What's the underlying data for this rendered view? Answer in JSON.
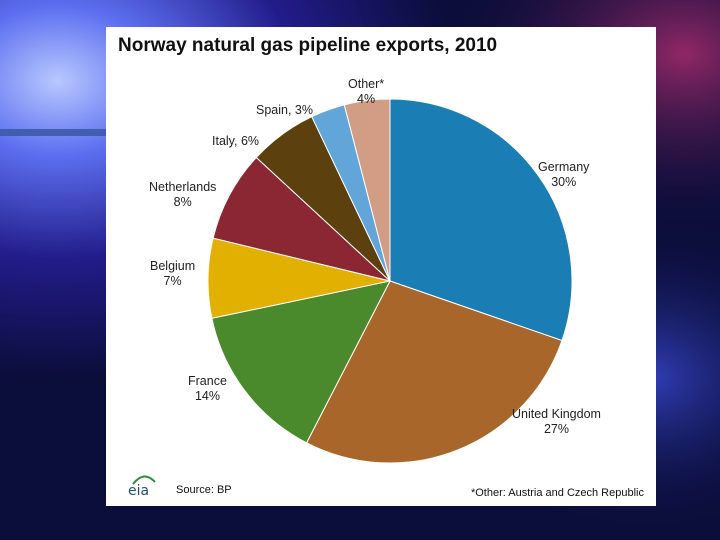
{
  "chart_data": {
    "type": "pie",
    "title": "Norway natural gas pipeline exports, 2010",
    "slices": [
      {
        "label": "Germany",
        "value": 30,
        "pct_label": "30%",
        "color": "#1a7db3"
      },
      {
        "label": "United Kingdom",
        "value": 27,
        "pct_label": "27%",
        "color": "#a8662a"
      },
      {
        "label": "France",
        "value": 14,
        "pct_label": "14%",
        "color": "#4a8a2c"
      },
      {
        "label": "Belgium",
        "value": 7,
        "pct_label": "7%",
        "color": "#e2b000"
      },
      {
        "label": "Netherlands",
        "value": 8,
        "pct_label": "8%",
        "color": "#8a2732"
      },
      {
        "label": "Italy",
        "value": 6,
        "pct_label": "6%",
        "color": "#5c400e"
      },
      {
        "label": "Spain",
        "value": 3,
        "pct_label": "3%",
        "color": "#62a5d9"
      },
      {
        "label": "Other*",
        "value": 4,
        "pct_label": "4%",
        "color": "#d19d85"
      }
    ]
  },
  "labels": {
    "germany": {
      "name": "Germany",
      "pct": "30%"
    },
    "uk": {
      "name": "United Kingdom",
      "pct": "27%"
    },
    "france": {
      "name": "France",
      "pct": "14%"
    },
    "belgium": {
      "name": "Belgium",
      "pct": "7%"
    },
    "netherlands": {
      "name": "Netherlands",
      "pct": "8%"
    },
    "italy": "Italy, 6%",
    "spain": "Spain, 3%",
    "other": {
      "name": "Other*",
      "pct": "4%"
    }
  },
  "logo_text": "eia",
  "source": "Source: BP",
  "footnote": "*Other: Austria and Czech Republic"
}
